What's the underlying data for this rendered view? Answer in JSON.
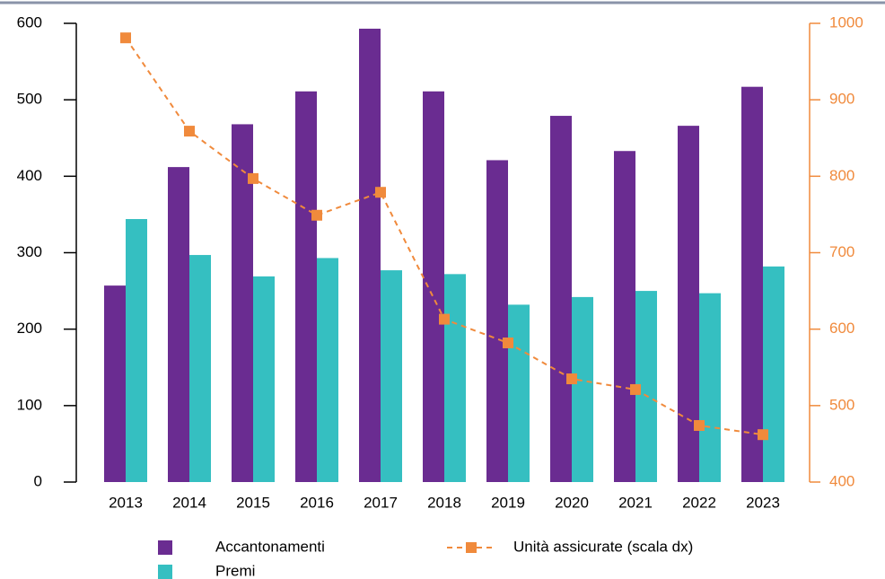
{
  "chart_data": {
    "type": "bar",
    "categories": [
      "2013",
      "2014",
      "2015",
      "2016",
      "2017",
      "2018",
      "2019",
      "2020",
      "2021",
      "2022",
      "2023"
    ],
    "series": [
      {
        "name": "Accantonamenti",
        "type": "bar",
        "color": "#6a2c91",
        "values": [
          257,
          412,
          468,
          511,
          593,
          511,
          421,
          479,
          433,
          466,
          517
        ]
      },
      {
        "name": "Premi",
        "type": "bar",
        "color": "#35bfc1",
        "values": [
          344,
          297,
          269,
          293,
          277,
          272,
          232,
          242,
          250,
          247,
          282
        ]
      },
      {
        "name": "Unità assicurate (scala dx)",
        "type": "line",
        "axis": "y2",
        "color": "#f08a3c",
        "values": [
          981,
          859,
          797,
          749,
          779,
          613,
          582,
          535,
          521,
          474,
          462
        ]
      }
    ],
    "ylim": [
      0,
      600
    ],
    "yticks": [
      0,
      100,
      200,
      300,
      400,
      500,
      600
    ],
    "y2lim": [
      400,
      1000
    ],
    "y2ticks": [
      400,
      500,
      600,
      700,
      800,
      900,
      1000
    ],
    "legend": "bottom"
  }
}
